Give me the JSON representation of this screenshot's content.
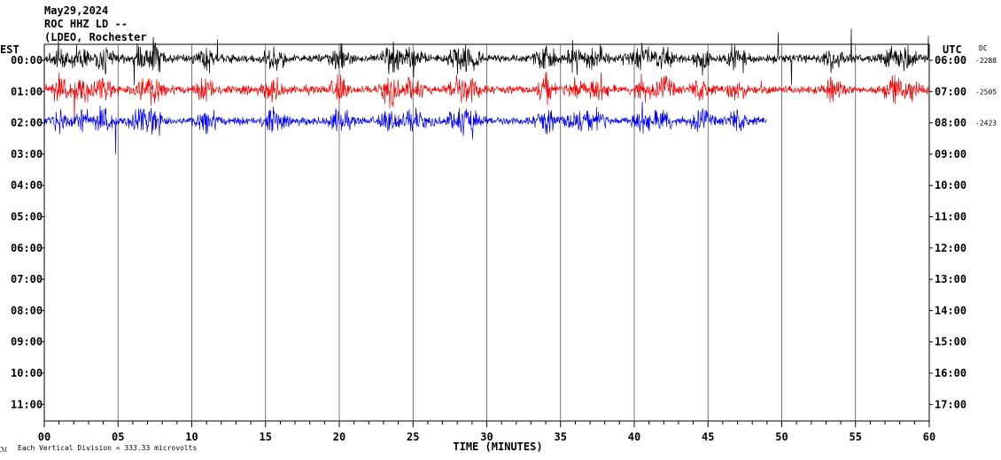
{
  "header": {
    "date": "May29,2024",
    "station": "ROC HHZ LD --",
    "location": "(LDEO, Rochester"
  },
  "footer": {
    "glyph": "ℳ",
    "scale_text": "Each Vertical Division =  333.33 microvolts"
  },
  "colors": {
    "background": "#ffffff",
    "grid": "#000000",
    "trace_1": "#000000",
    "trace_2": "#ff0000",
    "trace_3": "#0000ff"
  },
  "chart_data": {
    "type": "line",
    "title": "",
    "xlabel": "TIME (MINUTES)",
    "left_axis_label": "EST",
    "right_axis_label": "UTC",
    "dc_label": "DC",
    "xlim": [
      0,
      60
    ],
    "x_ticks": [
      "00",
      "05",
      "10",
      "15",
      "20",
      "25",
      "30",
      "35",
      "40",
      "45",
      "50",
      "55",
      "60"
    ],
    "left_ticks": [
      "00:00",
      "01:00",
      "02:00",
      "03:00",
      "04:00",
      "05:00",
      "06:00",
      "07:00",
      "08:00",
      "09:00",
      "10:00",
      "11:00"
    ],
    "right_ticks": [
      "06:00",
      "07:00",
      "08:00",
      "09:00",
      "10:00",
      "11:00",
      "12:00",
      "13:00",
      "14:00",
      "15:00",
      "16:00",
      "17:00"
    ],
    "series": [
      {
        "row": 0,
        "color": "#000000",
        "dc": "-2288",
        "x_end": 60
      },
      {
        "row": 1,
        "color": "#ff0000",
        "dc": "-2505",
        "x_end": 60
      },
      {
        "row": 2,
        "color": "#0000ff",
        "dc": "-2423",
        "x_end": 49
      }
    ]
  }
}
